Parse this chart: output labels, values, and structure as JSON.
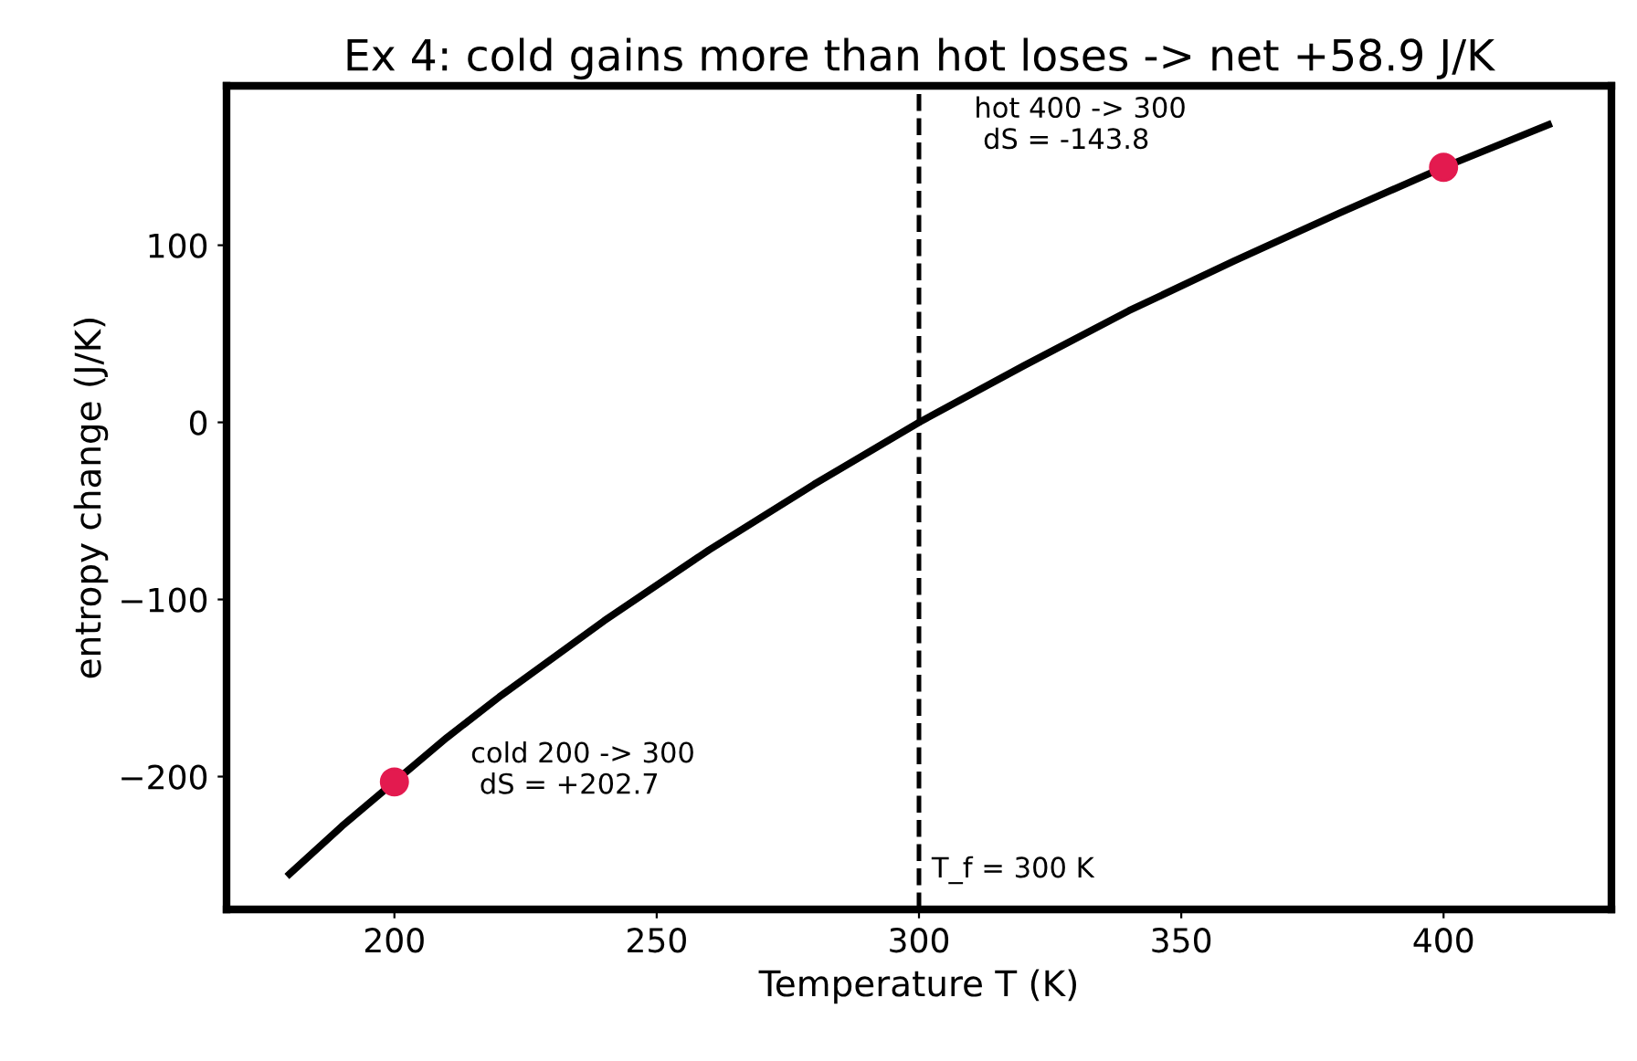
{
  "chart_data": {
    "type": "line",
    "title": "Ex 4: cold gains more than hot loses -> net +58.9 J/K",
    "xlabel": "Temperature T (K)",
    "ylabel": "entropy change (J/K)",
    "series": [
      {
        "color": "#000000",
        "x": [
          180,
          190,
          200,
          210,
          220,
          240,
          260,
          280,
          300,
          320,
          340,
          360,
          380,
          400,
          420
        ],
        "values": [
          -255,
          -228,
          -203,
          -178,
          -155,
          -112,
          -72,
          -35,
          0,
          32,
          63,
          91,
          118,
          144,
          168
        ]
      },
      {
        "type": "scatter",
        "color": "#e31a4f",
        "x": [
          200,
          400
        ],
        "values": [
          -203,
          144
        ],
        "marker": "circle"
      }
    ],
    "annotations": [
      "cold 200 -> 300\n dS = +202.7",
      "hot 400 -> 300\n dS = -143.8"
    ],
    "ref_lines": [
      {
        "axis": "x",
        "value": 300,
        "label": "T_f = 300 K",
        "color": "#000000",
        "line_style": "dashed"
      }
    ],
    "xlim": [
      168,
      432
    ],
    "ylim": [
      -275,
      190
    ],
    "xticks": [
      200,
      250,
      300,
      350,
      400
    ],
    "yticks": [
      {
        "value": -200,
        "label": "−200"
      },
      {
        "value": -100,
        "label": "−100"
      },
      0,
      100
    ],
    "grid": false,
    "legend": false
  }
}
